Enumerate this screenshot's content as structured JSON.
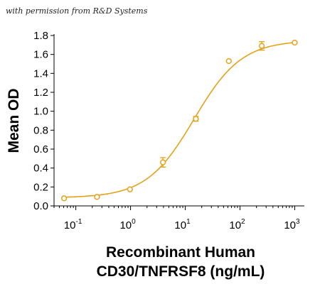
{
  "credit": "with permission from R&D Systems",
  "chart_data": {
    "type": "line",
    "title": "",
    "xlabel_lines": [
      "Recombinant Human",
      "CD30/TNFRSF8 (ng/mL)"
    ],
    "ylabel": "Mean OD",
    "xscale": "log",
    "xlim": [
      0.04,
      1500
    ],
    "ylim": [
      0,
      1.8
    ],
    "x_ticks": [
      {
        "value": 0.1,
        "base": "10",
        "exp": "-1"
      },
      {
        "value": 1,
        "base": "10",
        "exp": "0"
      },
      {
        "value": 10,
        "base": "10",
        "exp": "1"
      },
      {
        "value": 100,
        "base": "10",
        "exp": "2"
      },
      {
        "value": 1000,
        "base": "10",
        "exp": "3"
      }
    ],
    "y_ticks": [
      "0.0",
      "0.2",
      "0.4",
      "0.6",
      "0.8",
      "1.0",
      "1.2",
      "1.4",
      "1.6",
      "1.8"
    ],
    "color": "#E3A21A",
    "grid": false,
    "series": [
      {
        "points": [
          {
            "x": 0.061,
            "y": 0.08,
            "err": 0.0
          },
          {
            "x": 0.244,
            "y": 0.095,
            "err": 0.0
          },
          {
            "x": 0.977,
            "y": 0.175,
            "err": 0.0
          },
          {
            "x": 3.91,
            "y": 0.46,
            "err": 0.05
          },
          {
            "x": 15.6,
            "y": 0.92,
            "err": 0.025
          },
          {
            "x": 62.5,
            "y": 1.53,
            "err": 0.0
          },
          {
            "x": 250,
            "y": 1.69,
            "err": 0.045
          },
          {
            "x": 1000,
            "y": 1.725,
            "err": 0.0
          }
        ],
        "fit_curve": {
          "model": "4PL",
          "bottom": 0.085,
          "top": 1.75,
          "ec50": 14.5,
          "hill": 1.0
        }
      }
    ]
  }
}
